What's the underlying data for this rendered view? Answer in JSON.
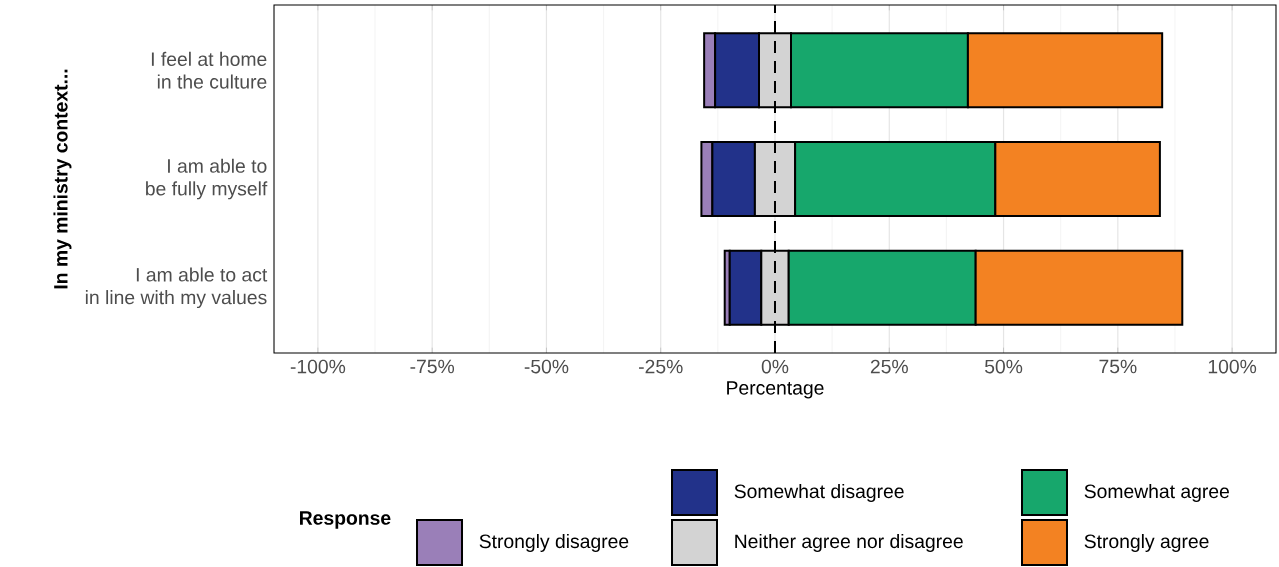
{
  "chart_data": {
    "type": "bar",
    "orientation": "horizontal",
    "categories": [
      "I feel at home\nin the culture",
      "I am able to\nbe fully myself",
      "I am able to act\nin line with my values"
    ],
    "series": [
      {
        "name": "Strongly disagree",
        "color": "#9a7fb8",
        "values": [
          2.4,
          2.4,
          1.1
        ],
        "base": [
          -15.5,
          -16.1,
          -11.0
        ]
      },
      {
        "name": "Somewhat disagree",
        "color": "#22328a",
        "values": [
          9.6,
          9.3,
          6.9
        ],
        "base": [
          -13.1,
          -13.7,
          -9.9
        ]
      },
      {
        "name": "Neither agree nor disagree",
        "color": "#d3d3d3",
        "values": [
          7.0,
          8.8,
          6.0
        ],
        "base": [
          -3.5,
          -4.4,
          -3.0
        ]
      },
      {
        "name": "Somewhat agree",
        "color": "#17a76c",
        "values": [
          38.7,
          43.8,
          40.9
        ],
        "base": [
          3.5,
          4.4,
          3.0
        ]
      },
      {
        "name": "Strongly agree",
        "color": "#f38222",
        "values": [
          42.5,
          36.0,
          45.2
        ],
        "base": [
          42.2,
          48.2,
          43.9
        ]
      }
    ],
    "xlim": [
      -109.6,
      109.6
    ],
    "xticks": [
      {
        "value": -100,
        "label": "-100%"
      },
      {
        "value": -75,
        "label": "-75%"
      },
      {
        "value": -50,
        "label": "-50%"
      },
      {
        "value": -25,
        "label": "-25%"
      },
      {
        "value": 0,
        "label": "0%"
      },
      {
        "value": 25,
        "label": "25%"
      },
      {
        "value": 50,
        "label": "50%"
      },
      {
        "value": 75,
        "label": "75%"
      },
      {
        "value": 100,
        "label": "100%"
      }
    ],
    "xlabel": "Percentage",
    "ylabel": "In my ministry context...",
    "legend_title": "Response",
    "ref_lines": [
      {
        "axis": "x",
        "value": 0,
        "line_style": "dashed"
      }
    ],
    "grid": "x",
    "legend": "bottom"
  }
}
